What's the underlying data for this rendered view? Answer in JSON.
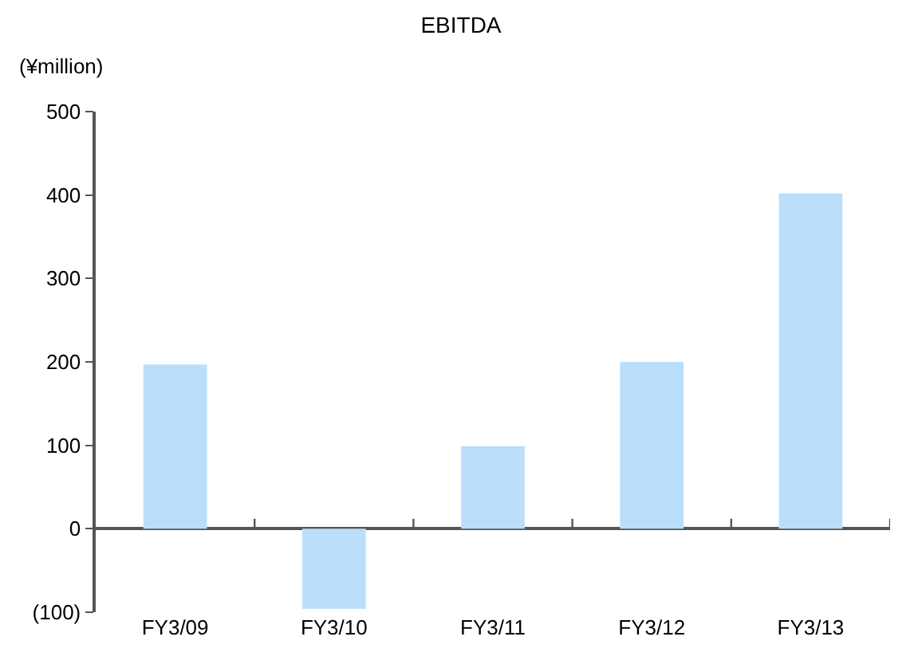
{
  "chart_data": {
    "type": "bar",
    "title": "EBITDA",
    "ylabel": "(¥million)",
    "categories": [
      "FY3/09",
      "FY3/10",
      "FY3/11",
      "FY3/12",
      "FY3/13"
    ],
    "values": [
      197,
      -96,
      99,
      200,
      402
    ],
    "color": "#bbdefb",
    "ylim": [
      -100,
      500
    ],
    "yticks": [
      {
        "value": -100,
        "label": "(100)"
      },
      0,
      100,
      200,
      300,
      400,
      500
    ]
  }
}
